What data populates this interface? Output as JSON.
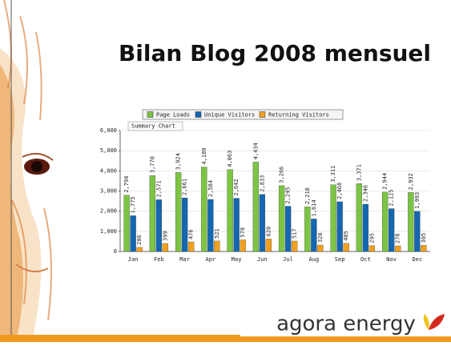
{
  "title": "Bilan Blog 2008 mensuel",
  "chart_data": {
    "type": "bar",
    "tooltip": "Summary Chart",
    "categories": [
      "Jan",
      "Feb",
      "Mar",
      "Apr",
      "May",
      "Jun",
      "Jul",
      "Aug",
      "Sep",
      "Oct",
      "Nov",
      "Dec"
    ],
    "series": [
      {
        "name": "Page Loads",
        "color": "#7cc443",
        "values": [
          2794,
          3770,
          3924,
          4189,
          4063,
          4434,
          3266,
          2218,
          3311,
          3371,
          2944,
          2932
        ],
        "value_labels": [
          "2,794",
          "3,770",
          "3,924",
          "4,189",
          "4,063",
          "4,434",
          "3,266",
          "2,218",
          "3,311",
          "3,371",
          "2,944",
          "2,932"
        ]
      },
      {
        "name": "Unique Visitors",
        "color": "#1467b0",
        "values": [
          1775,
          2571,
          2661,
          2584,
          2642,
          2833,
          2245,
          1614,
          2468,
          2346,
          2125,
          1993
        ],
        "value_labels": [
          "1,775",
          "2,571",
          "2,661",
          "2,584",
          "2,642",
          "2,833",
          "2,245",
          "1,614",
          "2,468",
          "2,346",
          "2,125",
          "1,993"
        ]
      },
      {
        "name": "Returning Visitors",
        "color": "#f2a01e",
        "values": [
          206,
          399,
          476,
          521,
          578,
          620,
          517,
          320,
          405,
          295,
          278,
          305
        ]
      }
    ],
    "ylim": [
      0,
      6000
    ],
    "yticks": [
      0,
      {
        "value": 1000,
        "label": "1,000"
      },
      {
        "value": 2000,
        "label": "2,000"
      },
      {
        "value": 3000,
        "label": "3,000"
      },
      {
        "value": 4000,
        "label": "4,000"
      },
      {
        "value": 5000,
        "label": "5,000"
      },
      {
        "value": 6000,
        "label": "6,000"
      }
    ],
    "grid": true,
    "legend": "top"
  },
  "footer": {
    "logo_text": "agora energy"
  }
}
